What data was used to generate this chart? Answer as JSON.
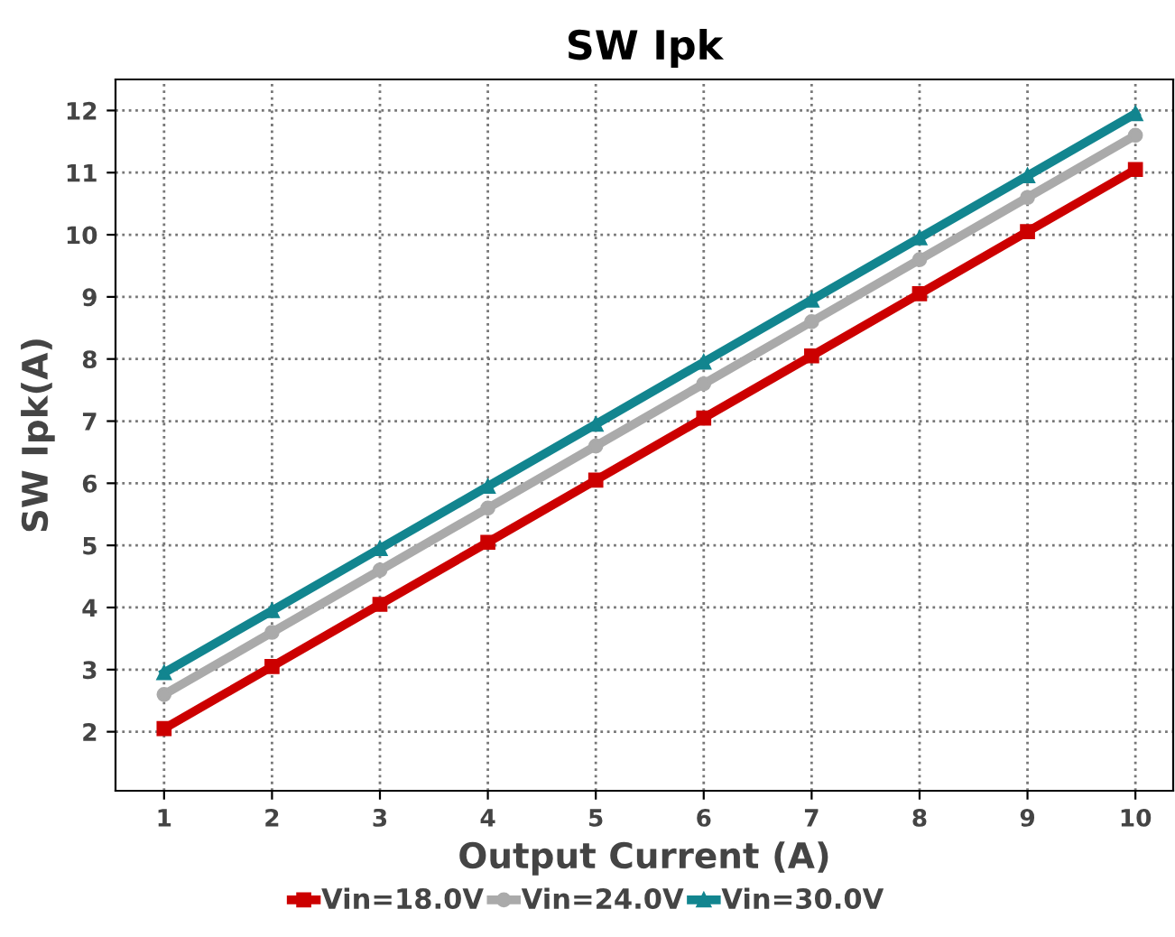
{
  "chart_data": {
    "type": "line",
    "title": "SW Ipk",
    "xlabel": "Output Current (A)",
    "ylabel": "SW Ipk(A)",
    "x": [
      1,
      2,
      3,
      4,
      5,
      6,
      7,
      8,
      9,
      10
    ],
    "series": [
      {
        "name": "Vin=18.0V",
        "color": "#cc0000",
        "marker": "square",
        "values": [
          2.05,
          3.05,
          4.05,
          5.05,
          6.05,
          7.05,
          8.05,
          9.05,
          10.05,
          11.05
        ]
      },
      {
        "name": "Vin=24.0V",
        "color": "#aaaaaa",
        "marker": "circle",
        "values": [
          2.6,
          3.6,
          4.6,
          5.6,
          6.6,
          7.6,
          8.6,
          9.6,
          10.6,
          11.6
        ]
      },
      {
        "name": "Vin=30.0V",
        "color": "#12858f",
        "marker": "triangle",
        "values": [
          2.95,
          3.95,
          4.95,
          5.95,
          6.95,
          7.95,
          8.95,
          9.95,
          10.95,
          11.95
        ]
      }
    ],
    "xlim": [
      0.55,
      10.35
    ],
    "xticks": [
      1,
      2,
      3,
      4,
      5,
      6,
      7,
      8,
      9,
      10
    ],
    "ylim": [
      1.05,
      12.5
    ],
    "yticks": [
      2,
      3,
      4,
      5,
      6,
      7,
      8,
      9,
      10,
      11,
      12
    ],
    "grid": true,
    "legend": "bottom",
    "line_style": "solid"
  }
}
